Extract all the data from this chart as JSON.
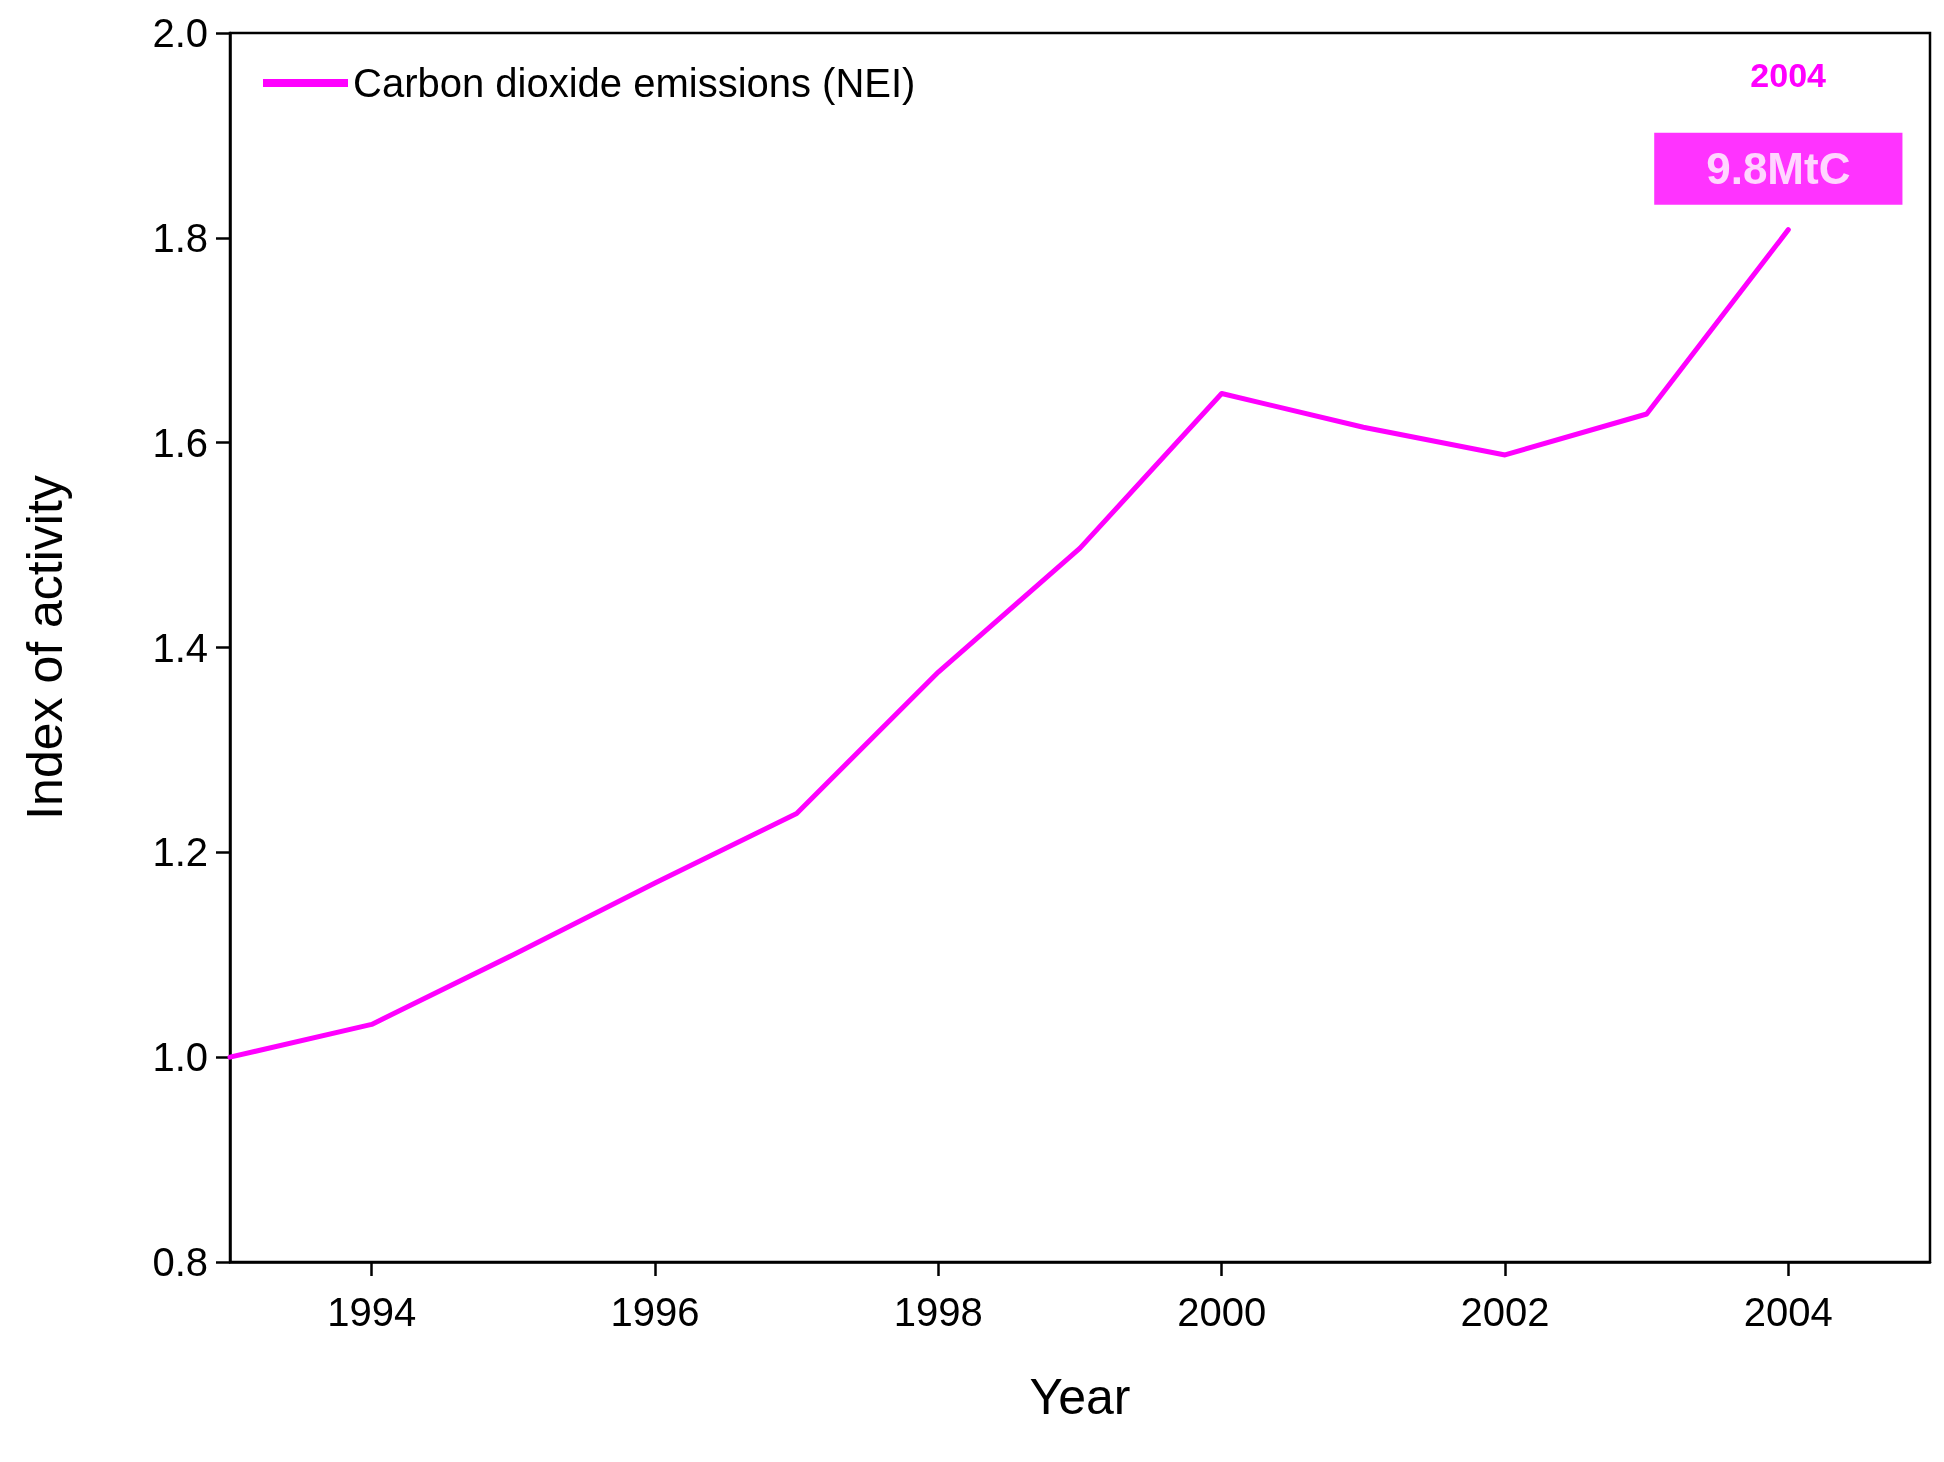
{
  "chart_data": {
    "type": "line",
    "xlabel": "Year",
    "ylabel": "Index of activity",
    "x": [
      1993,
      1994,
      1995,
      1996,
      1997,
      1998,
      1999,
      2000,
      2001,
      2002,
      2003,
      2004
    ],
    "series": [
      {
        "name": "Carbon dioxide emissions (NEI)",
        "color": "#ff00ff",
        "values": [
          1.0,
          1.032,
          1.1,
          1.17,
          1.238,
          1.376,
          1.497,
          1.648,
          1.615,
          1.588,
          1.628,
          1.808
        ]
      }
    ],
    "xlim": [
      1993,
      2005
    ],
    "xticks": [
      1994,
      1996,
      1998,
      2000,
      2002,
      2004
    ],
    "ylim": [
      0.8,
      2.0
    ],
    "yticks": [
      0.8,
      {
        "value": 1,
        "label": "1.0"
      },
      1.2,
      1.4,
      1.6,
      1.8,
      {
        "value": 2,
        "label": "2.0"
      }
    ],
    "annotations": [
      "2004",
      {
        "text": "9.8MtC",
        "x": 2004,
        "y": 1.808
      }
    ],
    "grid": false,
    "legend": "top left",
    "marker": "none",
    "line_style": "solid"
  }
}
